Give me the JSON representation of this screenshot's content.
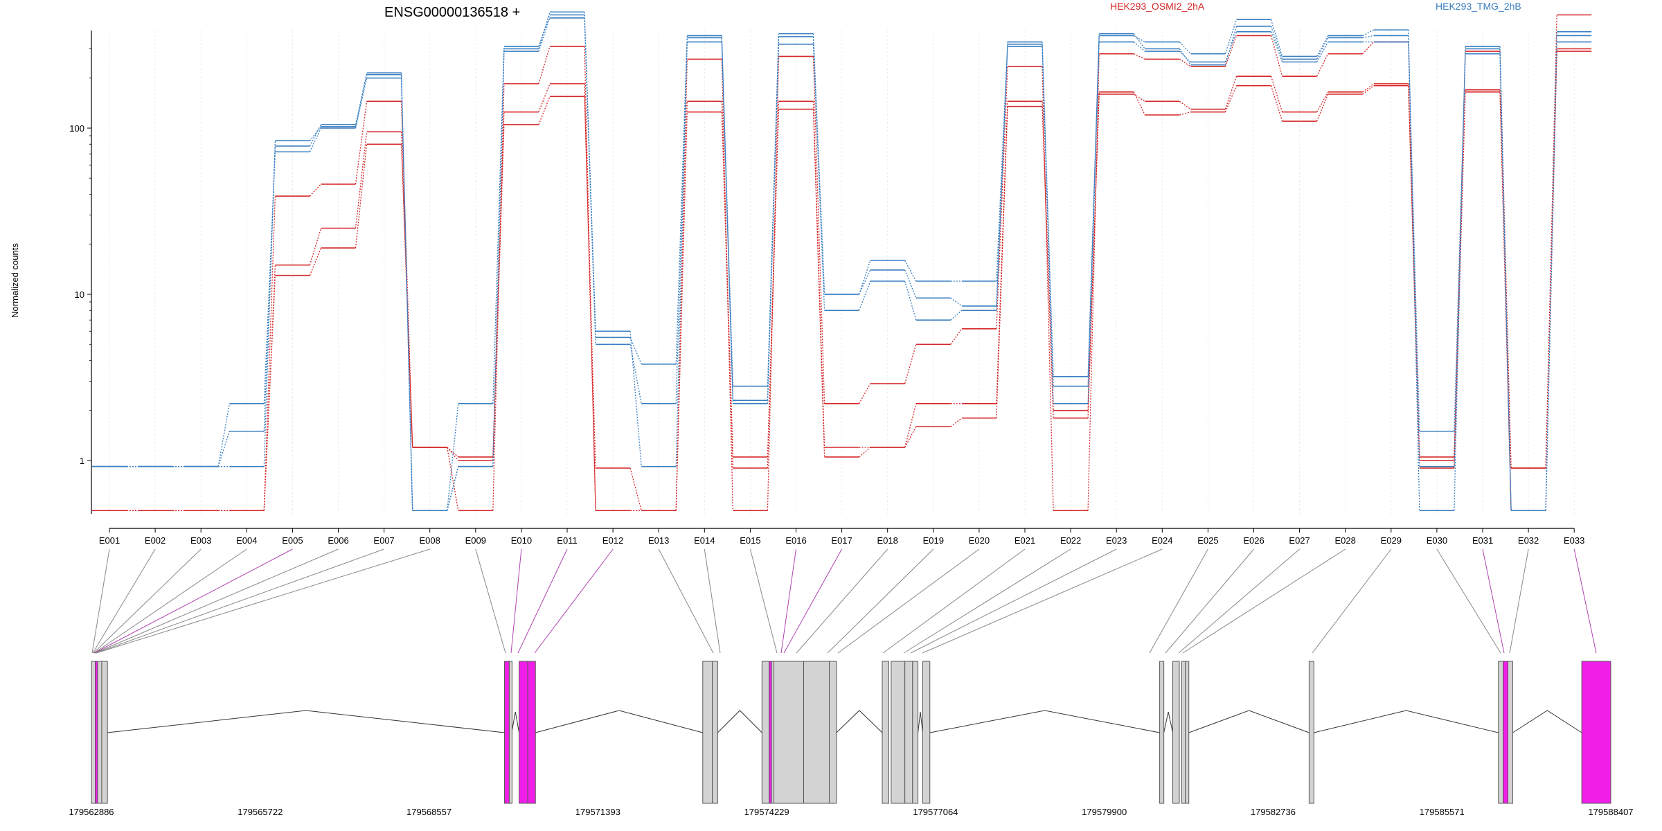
{
  "chart_data": {
    "type": "line",
    "title": "ENSG00000136518 +",
    "ylabel": "Normalized counts",
    "yscale": "log",
    "ylim": [
      0.5,
      600
    ],
    "yticks": [
      "1",
      "10",
      "100"
    ],
    "categories": [
      "E001",
      "E002",
      "E003",
      "E004",
      "E005",
      "E006",
      "E007",
      "E008",
      "E009",
      "E010",
      "E011",
      "E012",
      "E013",
      "E014",
      "E015",
      "E016",
      "E017",
      "E018",
      "E019",
      "E020",
      "E021",
      "E022",
      "E023",
      "E024",
      "E025",
      "E026",
      "E027",
      "E028",
      "E029",
      "E030",
      "E031",
      "E032",
      "E033"
    ],
    "legend": [
      {
        "name": "HEK293_OSMI2_2hA",
        "color": "#d62728"
      },
      {
        "name": "HEK293_TMG_2hB",
        "color": "#3a7fc1"
      }
    ],
    "series": [
      {
        "group": "HEK293_OSMI2_2hA",
        "color": "#d62728",
        "values": [
          0.5,
          0.5,
          0.5,
          0.5,
          13,
          19,
          80,
          1.2,
          1.0,
          105,
          155,
          0.9,
          0.5,
          125,
          0.9,
          130,
          1.05,
          1.2,
          1.6,
          1.8,
          135,
          1.8,
          165,
          120,
          125,
          180,
          110,
          160,
          180,
          0.9,
          170,
          0.9,
          290
        ]
      },
      {
        "group": "HEK293_OSMI2_2hA",
        "color": "#d62728",
        "values": [
          0.5,
          0.5,
          0.5,
          0.5,
          15,
          25,
          95,
          1.2,
          1.05,
          125,
          185,
          0.5,
          0.5,
          145,
          1.05,
          145,
          1.2,
          1.2,
          2.2,
          2.2,
          145,
          2.0,
          160,
          145,
          130,
          205,
          125,
          165,
          185,
          1.05,
          165,
          0.5,
          300
        ]
      },
      {
        "group": "HEK293_OSMI2_2hA",
        "color": "#d62728",
        "values": [
          0.5,
          0.5,
          0.5,
          0.5,
          39,
          46,
          145,
          1.2,
          0.5,
          185,
          310,
          0.5,
          0.5,
          260,
          0.5,
          270,
          2.2,
          2.9,
          5.0,
          6.2,
          235,
          0.5,
          280,
          260,
          235,
          360,
          205,
          280,
          330,
          1.0,
          290,
          0.9,
          480
        ]
      },
      {
        "group": "HEK293_TMG_2hB",
        "color": "#3a7fc1",
        "values": [
          0.92,
          0.92,
          0.92,
          2.2,
          72,
          100,
          200,
          0.5,
          2.2,
          310,
          480,
          5.0,
          2.2,
          330,
          2.3,
          320,
          8.0,
          12.0,
          7.0,
          8.0,
          310,
          2.2,
          330,
          290,
          250,
          380,
          250,
          330,
          330,
          1.5,
          280,
          0.5,
          330
        ]
      },
      {
        "group": "HEK293_TMG_2hB",
        "color": "#3a7fc1",
        "values": [
          0.92,
          0.92,
          0.92,
          1.5,
          78,
          105,
          210,
          0.5,
          0.92,
          290,
          460,
          5.5,
          3.8,
          360,
          2.8,
          370,
          10.0,
          14.0,
          9.5,
          8.5,
          320,
          2.8,
          370,
          300,
          240,
          410,
          260,
          350,
          360,
          0.92,
          300,
          0.5,
          360
        ]
      },
      {
        "group": "HEK293_TMG_2hB",
        "color": "#3a7fc1",
        "values": [
          0.92,
          0.92,
          0.92,
          0.92,
          84,
          102,
          215,
          0.5,
          0.92,
          300,
          500,
          6.0,
          0.92,
          350,
          2.2,
          355,
          10.0,
          16.0,
          12.0,
          12.0,
          330,
          3.2,
          360,
          330,
          280,
          450,
          270,
          360,
          390,
          0.5,
          310,
          0.5,
          380
        ]
      }
    ],
    "gene_coords": [
      "179562886",
      "179565722",
      "179568557",
      "179571393",
      "179574229",
      "179577064",
      "179579900",
      "179582736",
      "179585571",
      "179588407"
    ],
    "gene_range": [
      179562886,
      179588407
    ],
    "exons": [
      {
        "start": 179562886,
        "end": 179562950,
        "color": "#d3d3d3"
      },
      {
        "start": 179562950,
        "end": 179562990,
        "color": "#f01fe8"
      },
      {
        "start": 179562990,
        "end": 179563060,
        "color": "#d3d3d3"
      },
      {
        "start": 179563060,
        "end": 179563155,
        "color": "#d3d3d3"
      },
      {
        "start": 179569825,
        "end": 179569905,
        "color": "#f01fe8"
      },
      {
        "start": 179569905,
        "end": 179569945,
        "color": "#d3d3d3"
      },
      {
        "start": 179570070,
        "end": 179570215,
        "color": "#f01fe8"
      },
      {
        "start": 179570215,
        "end": 179570345,
        "color": "#f01fe8"
      },
      {
        "start": 179573155,
        "end": 179573315,
        "color": "#d3d3d3"
      },
      {
        "start": 179573315,
        "end": 179573405,
        "color": "#d3d3d3"
      },
      {
        "start": 179574150,
        "end": 179574270,
        "color": "#d3d3d3"
      },
      {
        "start": 179574270,
        "end": 179574310,
        "color": "#f01fe8"
      },
      {
        "start": 179574310,
        "end": 179574350,
        "color": "#d3d3d3"
      },
      {
        "start": 179574350,
        "end": 179574850,
        "color": "#d3d3d3"
      },
      {
        "start": 179574850,
        "end": 179575280,
        "color": "#d3d3d3"
      },
      {
        "start": 179575280,
        "end": 179575400,
        "color": "#d3d3d3"
      },
      {
        "start": 179576170,
        "end": 179576280,
        "color": "#d3d3d3"
      },
      {
        "start": 179576320,
        "end": 179576550,
        "color": "#d3d3d3"
      },
      {
        "start": 179576550,
        "end": 179576680,
        "color": "#d3d3d3"
      },
      {
        "start": 179576680,
        "end": 179576770,
        "color": "#d3d3d3"
      },
      {
        "start": 179576850,
        "end": 179576970,
        "color": "#d3d3d3"
      },
      {
        "start": 179580830,
        "end": 179580900,
        "color": "#d3d3d3"
      },
      {
        "start": 179581050,
        "end": 179581160,
        "color": "#d3d3d3"
      },
      {
        "start": 179581200,
        "end": 179581260,
        "color": "#d3d3d3"
      },
      {
        "start": 179581260,
        "end": 179581320,
        "color": "#d3d3d3"
      },
      {
        "start": 179583340,
        "end": 179583420,
        "color": "#d3d3d3"
      },
      {
        "start": 179586520,
        "end": 179586600,
        "color": "#d3d3d3"
      },
      {
        "start": 179586600,
        "end": 179586680,
        "color": "#f01fe8"
      },
      {
        "start": 179586680,
        "end": 179586760,
        "color": "#d3d3d3"
      },
      {
        "start": 179587920,
        "end": 179588407,
        "color": "#f01fe8"
      }
    ],
    "grid": true
  }
}
